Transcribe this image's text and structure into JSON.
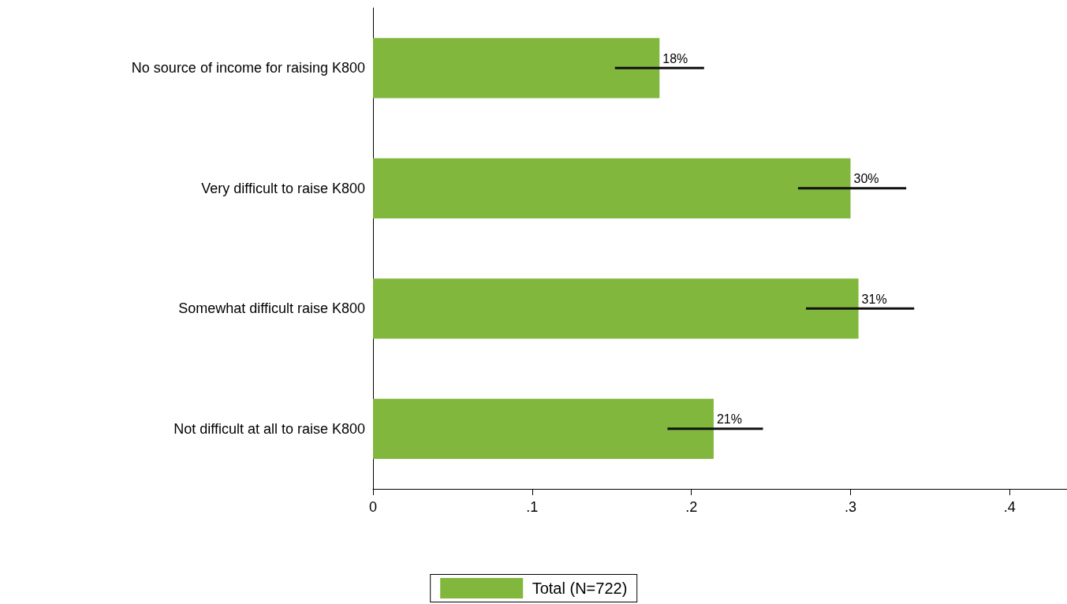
{
  "chart_data": {
    "type": "bar",
    "orientation": "horizontal",
    "categories": [
      "No source of income for raising K800",
      "Very difficult to raise K800",
      "Somewhat difficult raise K800",
      "Not difficult at all to raise K800"
    ],
    "series": [
      {
        "name": "Total (N=722)",
        "color": "#80b73c",
        "values": [
          0.18,
          0.3,
          0.305,
          0.214
        ],
        "errors": [
          [
            0.152,
            0.208
          ],
          [
            0.267,
            0.335
          ],
          [
            0.272,
            0.34
          ],
          [
            0.185,
            0.245
          ]
        ],
        "value_labels": [
          "18%",
          "30%",
          "31%",
          "21%"
        ]
      }
    ],
    "xlim": [
      0,
      0.436
    ],
    "xticks": [
      {
        "value": 0,
        "label": "0"
      },
      {
        "value": 0.1,
        "label": ".1"
      },
      {
        "value": 0.2,
        "label": ".2"
      },
      {
        "value": 0.3,
        "label": ".3"
      },
      {
        "value": 0.4,
        "label": ".4"
      }
    ],
    "grid": false,
    "legend": "bottom"
  }
}
